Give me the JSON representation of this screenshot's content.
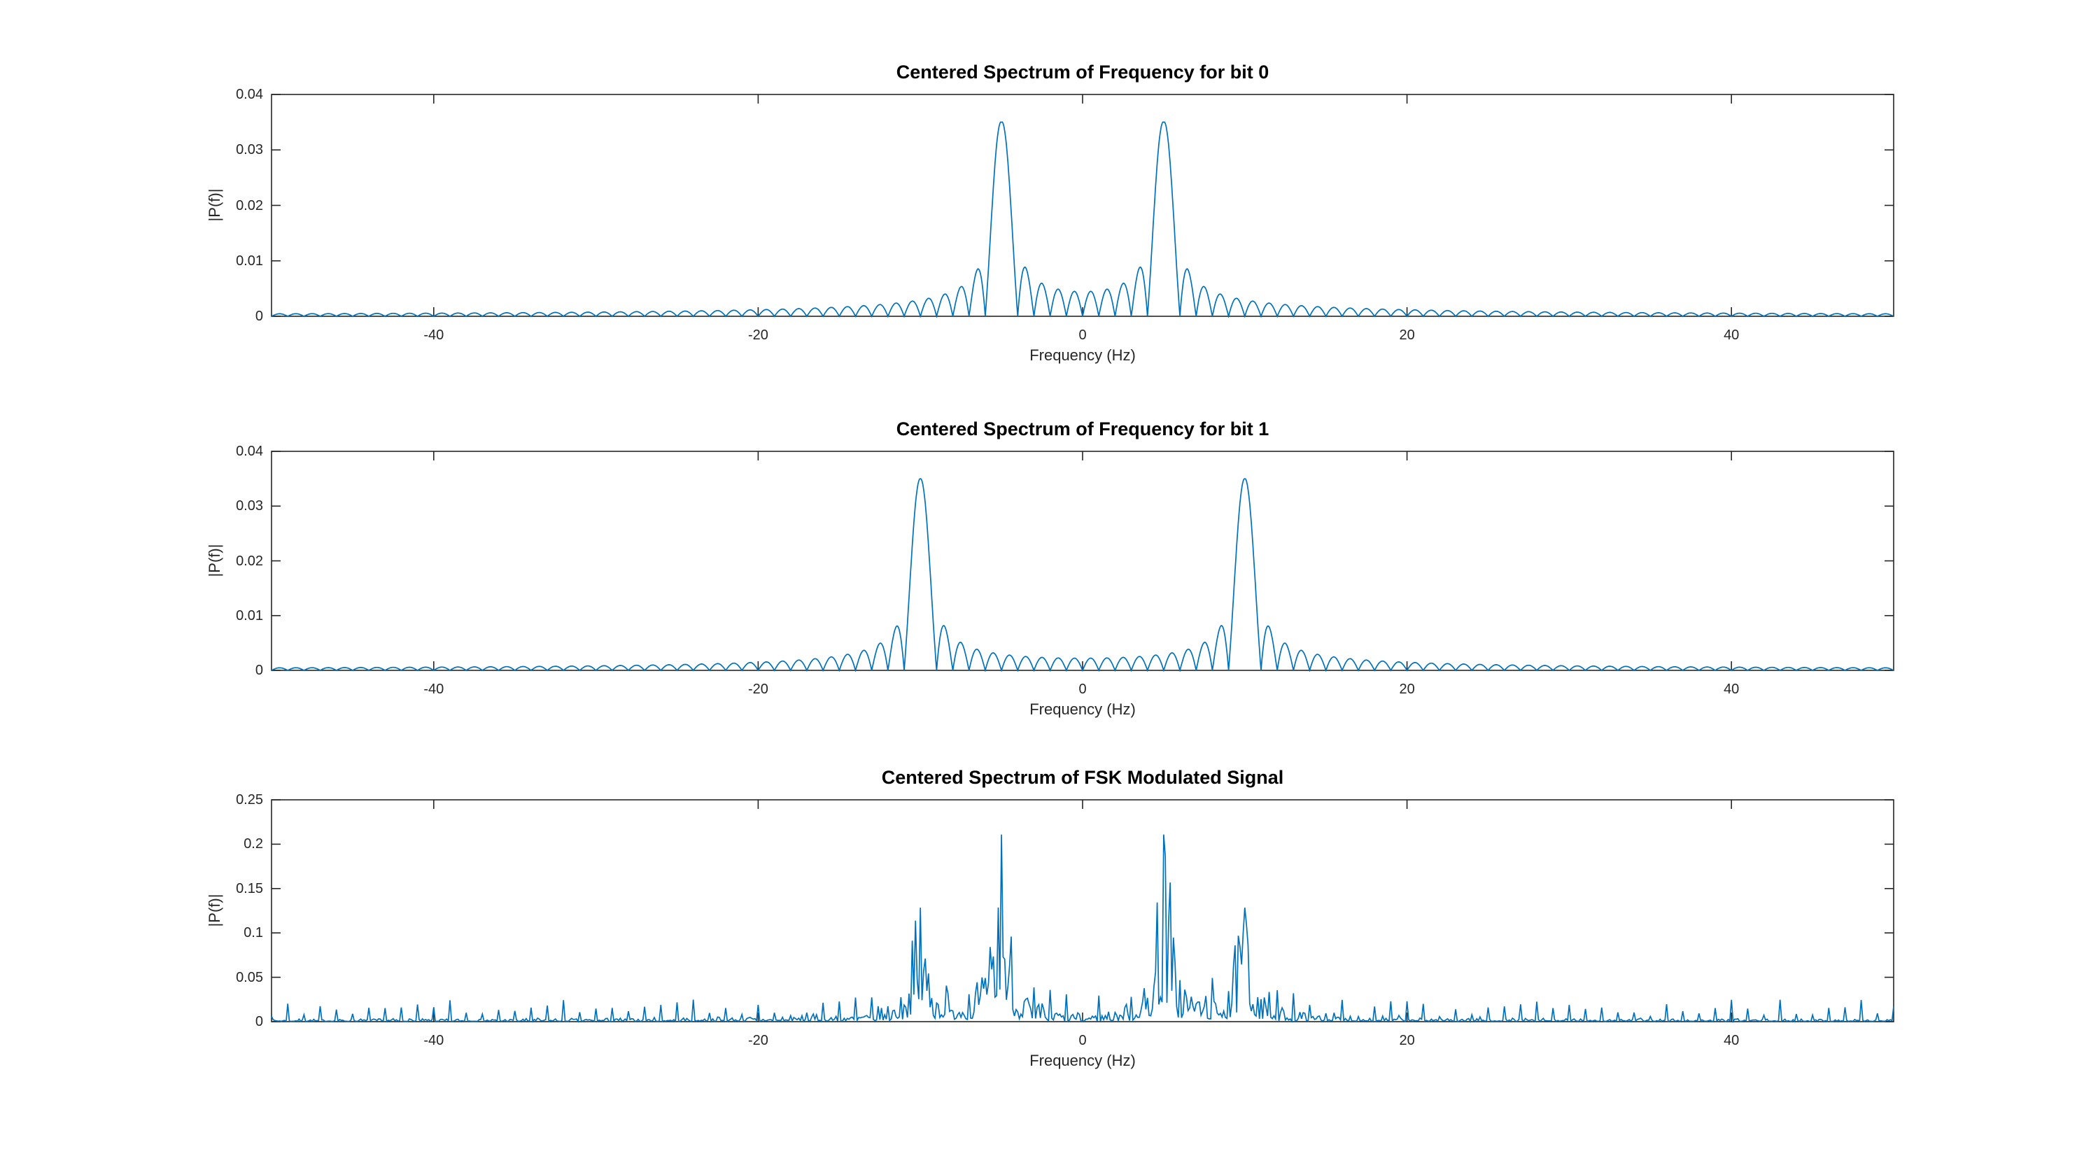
{
  "figure": {
    "background_color": "#ffffff",
    "line_color": "#0072BD",
    "axis_color": "#262626",
    "tick_text_color": "#262626",
    "title_color": "#000000"
  },
  "chart_data": [
    {
      "type": "line",
      "title": "Centered Spectrum of Frequency for bit 0",
      "xlabel": "Frequency (Hz)",
      "ylabel": "|P(f)|",
      "xlim": [
        -50,
        50
      ],
      "ylim": [
        0,
        0.04
      ],
      "xticks": [
        -40,
        -20,
        0,
        20,
        40
      ],
      "xtick_labels": [
        "-40",
        "-20",
        "0",
        "20",
        "40"
      ],
      "yticks": [
        0,
        0.01,
        0.02,
        0.03,
        0.04
      ],
      "ytick_labels": [
        "0",
        "0.01",
        "0.02",
        "0.03",
        "0.04"
      ],
      "grid": false,
      "legend": null,
      "series": {
        "name": "bit0-spectrum",
        "model": "sum_abs_sinc",
        "peak_frequencies_hz": [
          -5,
          5
        ],
        "peak_value": 0.035,
        "sidelobe_null_spacing_hz": 1,
        "first_sidelobe_value": 0.0076,
        "sample_step_hz": 0.05
      }
    },
    {
      "type": "line",
      "title": "Centered Spectrum of Frequency for bit 1",
      "xlabel": "Frequency (Hz)",
      "ylabel": "|P(f)|",
      "xlim": [
        -50,
        50
      ],
      "ylim": [
        0,
        0.04
      ],
      "xticks": [
        -40,
        -20,
        0,
        20,
        40
      ],
      "xtick_labels": [
        "-40",
        "-20",
        "0",
        "20",
        "40"
      ],
      "yticks": [
        0,
        0.01,
        0.02,
        0.03,
        0.04
      ],
      "ytick_labels": [
        "0",
        "0.01",
        "0.02",
        "0.03",
        "0.04"
      ],
      "grid": false,
      "legend": null,
      "series": {
        "name": "bit1-spectrum",
        "model": "sum_abs_sinc",
        "peak_frequencies_hz": [
          -10,
          10
        ],
        "peak_value": 0.035,
        "sidelobe_null_spacing_hz": 1,
        "first_sidelobe_value": 0.0076,
        "sample_step_hz": 0.05
      }
    },
    {
      "type": "line",
      "title": "Centered Spectrum of FSK Modulated Signal",
      "xlabel": "Frequency (Hz)",
      "ylabel": "|P(f)|",
      "xlim": [
        -50,
        50
      ],
      "ylim": [
        0,
        0.25
      ],
      "xticks": [
        -40,
        -20,
        0,
        20,
        40
      ],
      "xtick_labels": [
        "-40",
        "-20",
        "0",
        "20",
        "40"
      ],
      "yticks": [
        0,
        0.05,
        0.1,
        0.15,
        0.2,
        0.25
      ],
      "ytick_labels": [
        "0",
        "0.05",
        "0.1",
        "0.15",
        "0.2",
        "0.25"
      ],
      "grid": false,
      "legend": null,
      "series": {
        "name": "fsk-spectrum",
        "model": "fsk_spike_spectrum",
        "sample_step_hz": 0.1,
        "seed": 7,
        "noise_floor": 0.002,
        "clusters": [
          {
            "center_hz": 5,
            "mirrored": true,
            "max_value": 0.22,
            "sinc_gain": 0.18,
            "pedestal_gain": 0.03,
            "pedestal_sigma_hz": 1.3
          },
          {
            "center_hz": 10,
            "mirrored": true,
            "max_value": 0.13,
            "sinc_gain": 0.1,
            "pedestal_gain": 0.025,
            "pedestal_sigma_hz": 1.3
          }
        ],
        "midband_pedestal": {
          "center_abs_hz": 7.5,
          "gain": 0.012,
          "sigma_hz": 2.8
        },
        "comb_spacing_hz": 1,
        "comb_base_height": 0.005,
        "comb_random_height": 0.02,
        "comb_center_boost": 1.3,
        "comb_boost_center_abs_hz": 7.5,
        "comb_boost_sigma_hz": 5.5
      }
    }
  ]
}
